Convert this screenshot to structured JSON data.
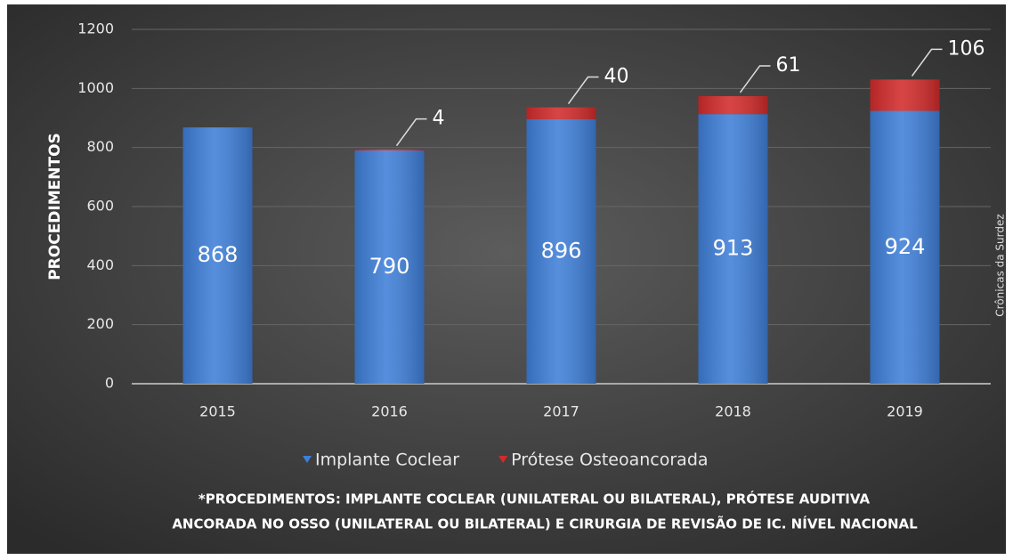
{
  "chart_data": {
    "type": "stacked_bar",
    "y_label": "PROCEDIMENTOS",
    "categories": [
      "2015",
      "2016",
      "2017",
      "2018",
      "2019"
    ],
    "series": [
      {
        "name": "Implante Coclear",
        "color": "#3f7fd8",
        "values": [
          868,
          790,
          896,
          913,
          924
        ]
      },
      {
        "name": "Prótese Osteoancorada",
        "color": "#d22b2b",
        "values": [
          null,
          4,
          40,
          61,
          106
        ]
      }
    ],
    "ylim": [
      0,
      1200
    ],
    "yticks": [
      0,
      200,
      400,
      600,
      800,
      1000,
      1200
    ],
    "grid": true,
    "side_note": "Crônicas da Surdez",
    "footnote": [
      "*PROCEDIMENTOS: IMPLANTE COCLEAR (UNILATERAL OU BILATERAL), PRÓTESE AUDITIVA",
      "ANCORADA NO OSSO (UNILATERAL OU BILATERAL) E CIRURGIA DE REVISÃO DE IC. NÍVEL NACIONAL"
    ]
  }
}
